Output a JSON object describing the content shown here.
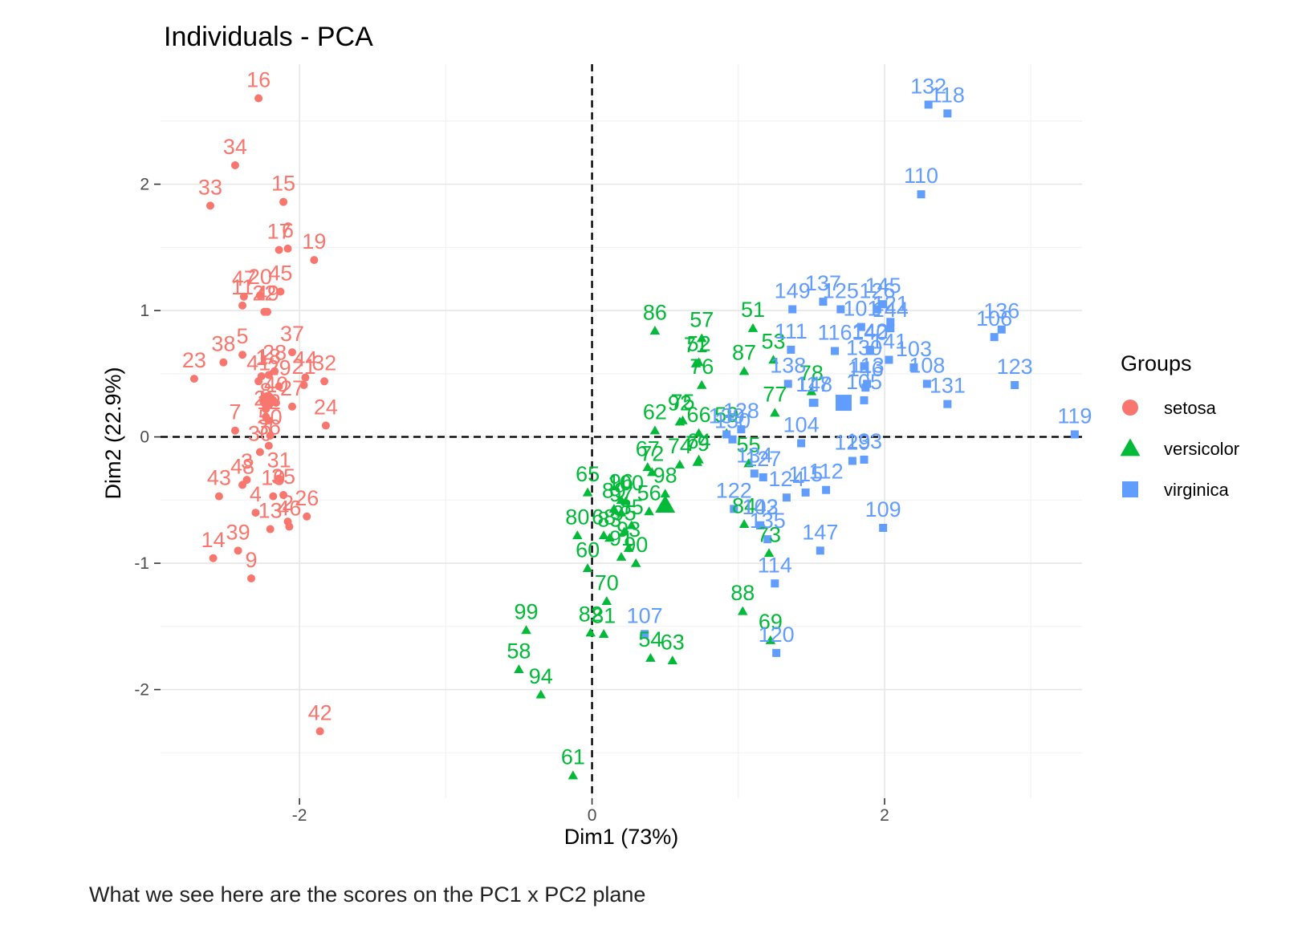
{
  "chart_data": {
    "type": "scatter",
    "title": "Individuals - PCA",
    "xlabel": "Dim1 (73%)",
    "ylabel": "Dim2 (22.9%)",
    "xlim": [
      -2.95,
      3.35
    ],
    "ylim": [
      -2.86,
      2.95
    ],
    "xticks": [
      -2,
      0,
      2
    ],
    "yticks": [
      -2,
      -1,
      0,
      1,
      2
    ],
    "grid": true,
    "reference_lines": {
      "x": 0,
      "y": 0,
      "style": "dashed"
    },
    "legend": {
      "title": "Groups",
      "position": "right"
    },
    "series": [
      {
        "name": "setosa",
        "color": "#F8766D",
        "marker": "circle",
        "points": [
          {
            "id": "1",
            "x": -2.26,
            "y": 0.48
          },
          {
            "id": "2",
            "x": -2.08,
            "y": -0.67
          },
          {
            "id": "3",
            "x": -2.36,
            "y": -0.34
          },
          {
            "id": "4",
            "x": -2.3,
            "y": -0.6
          },
          {
            "id": "5",
            "x": -2.39,
            "y": 0.65
          },
          {
            "id": "6",
            "x": -2.08,
            "y": 1.49
          },
          {
            "id": "7",
            "x": -2.44,
            "y": 0.05
          },
          {
            "id": "8",
            "x": -2.23,
            "y": 0.22
          },
          {
            "id": "9",
            "x": -2.33,
            "y": -1.12
          },
          {
            "id": "10",
            "x": -2.18,
            "y": -0.47
          },
          {
            "id": "11",
            "x": -2.39,
            "y": 1.04
          },
          {
            "id": "12",
            "x": -2.21,
            "y": 0.13
          },
          {
            "id": "13",
            "x": -2.2,
            "y": -0.73
          },
          {
            "id": "14",
            "x": -2.59,
            "y": -0.96
          },
          {
            "id": "15",
            "x": -2.11,
            "y": 1.86
          },
          {
            "id": "16",
            "x": -2.28,
            "y": 2.68
          },
          {
            "id": "17",
            "x": -2.14,
            "y": 1.48
          },
          {
            "id": "18",
            "x": -2.21,
            "y": 0.49
          },
          {
            "id": "19",
            "x": -1.9,
            "y": 1.4
          },
          {
            "id": "20",
            "x": -2.27,
            "y": 1.12
          },
          {
            "id": "21",
            "x": -1.97,
            "y": 0.41
          },
          {
            "id": "22",
            "x": -2.24,
            "y": 0.99
          },
          {
            "id": "23",
            "x": -2.72,
            "y": 0.46
          },
          {
            "id": "24",
            "x": -1.82,
            "y": 0.09
          },
          {
            "id": "25",
            "x": -2.23,
            "y": 0.16
          },
          {
            "id": "26",
            "x": -1.95,
            "y": -0.63
          },
          {
            "id": "27",
            "x": -2.05,
            "y": 0.24
          },
          {
            "id": "28",
            "x": -2.17,
            "y": 0.52
          },
          {
            "id": "29",
            "x": -2.14,
            "y": 0.4
          },
          {
            "id": "30",
            "x": -2.27,
            "y": -0.12
          },
          {
            "id": "31",
            "x": -2.14,
            "y": -0.33
          },
          {
            "id": "32",
            "x": -1.83,
            "y": 0.44
          },
          {
            "id": "33",
            "x": -2.61,
            "y": 1.83
          },
          {
            "id": "34",
            "x": -2.44,
            "y": 2.15
          },
          {
            "id": "35",
            "x": -2.11,
            "y": -0.46
          },
          {
            "id": "36",
            "x": -2.21,
            "y": -0.07
          },
          {
            "id": "37",
            "x": -2.05,
            "y": 0.67
          },
          {
            "id": "38",
            "x": -2.52,
            "y": 0.59
          },
          {
            "id": "39",
            "x": -2.42,
            "y": -0.9
          },
          {
            "id": "40",
            "x": -2.16,
            "y": 0.27
          },
          {
            "id": "41",
            "x": -2.28,
            "y": 0.44
          },
          {
            "id": "42",
            "x": -1.86,
            "y": -2.33
          },
          {
            "id": "43",
            "x": -2.55,
            "y": -0.47
          },
          {
            "id": "44",
            "x": -1.96,
            "y": 0.47
          },
          {
            "id": "45",
            "x": -2.13,
            "y": 1.15
          },
          {
            "id": "46",
            "x": -2.07,
            "y": -0.71
          },
          {
            "id": "47",
            "x": -2.38,
            "y": 1.11
          },
          {
            "id": "48",
            "x": -2.39,
            "y": -0.38
          },
          {
            "id": "49",
            "x": -2.22,
            "y": 0.99
          },
          {
            "id": "50",
            "x": -2.2,
            "y": 0.01
          }
        ]
      },
      {
        "name": "versicolor",
        "color": "#00BA38",
        "marker": "triangle",
        "points": [
          {
            "id": "51",
            "x": 1.1,
            "y": 0.86
          },
          {
            "id": "52",
            "x": 0.73,
            "y": 0.59
          },
          {
            "id": "53",
            "x": 1.24,
            "y": 0.61
          },
          {
            "id": "54",
            "x": 0.4,
            "y": -1.75
          },
          {
            "id": "55",
            "x": 1.07,
            "y": -0.21
          },
          {
            "id": "56",
            "x": 0.39,
            "y": -0.59
          },
          {
            "id": "57",
            "x": 0.75,
            "y": 0.78
          },
          {
            "id": "58",
            "x": -0.5,
            "y": -1.84
          },
          {
            "id": "59",
            "x": 0.92,
            "y": 0.03
          },
          {
            "id": "60",
            "x": -0.03,
            "y": -1.04
          },
          {
            "id": "61",
            "x": -0.13,
            "y": -2.68
          },
          {
            "id": "62",
            "x": 0.43,
            "y": 0.05
          },
          {
            "id": "63",
            "x": 0.55,
            "y": -1.77
          },
          {
            "id": "64",
            "x": 0.73,
            "y": -0.18
          },
          {
            "id": "65",
            "x": -0.03,
            "y": -0.44
          },
          {
            "id": "66",
            "x": 0.73,
            "y": 0.03
          },
          {
            "id": "67",
            "x": 0.38,
            "y": -0.24
          },
          {
            "id": "68",
            "x": 0.08,
            "y": -0.78
          },
          {
            "id": "69",
            "x": 1.22,
            "y": -1.61
          },
          {
            "id": "70",
            "x": 0.1,
            "y": -1.3
          },
          {
            "id": "71",
            "x": 0.71,
            "y": 0.58
          },
          {
            "id": "72",
            "x": 0.41,
            "y": -0.28
          },
          {
            "id": "73",
            "x": 1.21,
            "y": -0.92
          },
          {
            "id": "74",
            "x": 0.6,
            "y": -0.22
          },
          {
            "id": "75",
            "x": 0.62,
            "y": 0.13
          },
          {
            "id": "76",
            "x": 0.75,
            "y": 0.41
          },
          {
            "id": "77",
            "x": 1.25,
            "y": 0.19
          },
          {
            "id": "78",
            "x": 1.5,
            "y": 0.36
          },
          {
            "id": "79",
            "x": 0.72,
            "y": -0.2
          },
          {
            "id": "80",
            "x": -0.1,
            "y": -0.78
          },
          {
            "id": "81",
            "x": 0.08,
            "y": -1.56
          },
          {
            "id": "82",
            "x": -0.01,
            "y": -1.55
          },
          {
            "id": "83",
            "x": 0.12,
            "y": -0.8
          },
          {
            "id": "84",
            "x": 1.04,
            "y": -0.69
          },
          {
            "id": "85",
            "x": 0.27,
            "y": -0.7
          },
          {
            "id": "86",
            "x": 0.43,
            "y": 0.84
          },
          {
            "id": "87",
            "x": 1.04,
            "y": 0.52
          },
          {
            "id": "88",
            "x": 1.03,
            "y": -1.38
          },
          {
            "id": "89",
            "x": 0.15,
            "y": -0.57
          },
          {
            "id": "90",
            "x": 0.3,
            "y": -1.0
          },
          {
            "id": "91",
            "x": 0.2,
            "y": -0.95
          },
          {
            "id": "92",
            "x": 0.6,
            "y": 0.12
          },
          {
            "id": "93",
            "x": 0.25,
            "y": -0.88
          },
          {
            "id": "94",
            "x": -0.35,
            "y": -2.04
          },
          {
            "id": "95",
            "x": 0.22,
            "y": -0.75
          },
          {
            "id": "96",
            "x": 0.2,
            "y": -0.5
          },
          {
            "id": "97",
            "x": 0.2,
            "y": -0.6
          },
          {
            "id": "98",
            "x": 0.5,
            "y": -0.45
          },
          {
            "id": "99",
            "x": -0.45,
            "y": -1.53
          },
          {
            "id": "100",
            "x": 0.23,
            "y": -0.51
          }
        ]
      },
      {
        "name": "virginica",
        "color": "#619CFF",
        "marker": "square",
        "points": [
          {
            "id": "101",
            "x": 1.84,
            "y": 0.87
          },
          {
            "id": "102",
            "x": 1.15,
            "y": -0.7
          },
          {
            "id": "103",
            "x": 2.2,
            "y": 0.55
          },
          {
            "id": "104",
            "x": 1.43,
            "y": -0.05
          },
          {
            "id": "105",
            "x": 1.86,
            "y": 0.29
          },
          {
            "id": "106",
            "x": 2.75,
            "y": 0.79
          },
          {
            "id": "107",
            "x": 0.36,
            "y": -1.56
          },
          {
            "id": "108",
            "x": 2.29,
            "y": 0.42
          },
          {
            "id": "109",
            "x": 1.99,
            "y": -0.72
          },
          {
            "id": "110",
            "x": 2.25,
            "y": 1.92
          },
          {
            "id": "111",
            "x": 1.36,
            "y": 0.69
          },
          {
            "id": "112",
            "x": 1.6,
            "y": -0.42
          },
          {
            "id": "113",
            "x": 1.88,
            "y": 0.42
          },
          {
            "id": "114",
            "x": 1.25,
            "y": -1.16
          },
          {
            "id": "115",
            "x": 1.46,
            "y": -0.44
          },
          {
            "id": "116",
            "x": 1.66,
            "y": 0.68
          },
          {
            "id": "117",
            "x": 1.51,
            "y": 0.27
          },
          {
            "id": "118",
            "x": 2.43,
            "y": 2.56
          },
          {
            "id": "119",
            "x": 3.3,
            "y": 0.02
          },
          {
            "id": "120",
            "x": 1.26,
            "y": -1.71
          },
          {
            "id": "121",
            "x": 2.04,
            "y": 0.91
          },
          {
            "id": "122",
            "x": 0.97,
            "y": -0.57
          },
          {
            "id": "123",
            "x": 2.89,
            "y": 0.41
          },
          {
            "id": "124",
            "x": 1.33,
            "y": -0.48
          },
          {
            "id": "125",
            "x": 1.7,
            "y": 1.01
          },
          {
            "id": "126",
            "x": 1.95,
            "y": 1.01
          },
          {
            "id": "127",
            "x": 1.17,
            "y": -0.32
          },
          {
            "id": "128",
            "x": 1.02,
            "y": 0.06
          },
          {
            "id": "129",
            "x": 1.78,
            "y": -0.19
          },
          {
            "id": "130",
            "x": 1.86,
            "y": 0.56
          },
          {
            "id": "131",
            "x": 2.43,
            "y": 0.26
          },
          {
            "id": "132",
            "x": 2.3,
            "y": 2.63
          },
          {
            "id": "133",
            "x": 1.86,
            "y": -0.18
          },
          {
            "id": "134",
            "x": 1.11,
            "y": -0.29
          },
          {
            "id": "135",
            "x": 1.2,
            "y": -0.81
          },
          {
            "id": "136",
            "x": 2.8,
            "y": 0.85
          },
          {
            "id": "137",
            "x": 1.58,
            "y": 1.07
          },
          {
            "id": "138",
            "x": 1.34,
            "y": 0.42
          },
          {
            "id": "139",
            "x": 0.92,
            "y": 0.02
          },
          {
            "id": "140",
            "x": 1.9,
            "y": 0.68
          },
          {
            "id": "141",
            "x": 2.03,
            "y": 0.61
          },
          {
            "id": "142",
            "x": 1.9,
            "y": 0.69
          },
          {
            "id": "143",
            "x": 1.15,
            "y": -0.7
          },
          {
            "id": "144",
            "x": 2.04,
            "y": 0.86
          },
          {
            "id": "145",
            "x": 1.99,
            "y": 1.05
          },
          {
            "id": "146",
            "x": 1.87,
            "y": 0.39
          },
          {
            "id": "147",
            "x": 1.56,
            "y": -0.9
          },
          {
            "id": "148",
            "x": 1.52,
            "y": 0.27
          },
          {
            "id": "149",
            "x": 1.37,
            "y": 1.01
          },
          {
            "id": "150",
            "x": 0.96,
            "y": -0.02
          }
        ]
      }
    ],
    "group_centers": [
      {
        "name": "setosa",
        "x": -2.22,
        "y": 0.29
      },
      {
        "name": "versicolor",
        "x": 0.5,
        "y": -0.54
      },
      {
        "name": "virginica",
        "x": 1.72,
        "y": 0.27
      }
    ]
  },
  "caption": "What we see here are the scores on the PC1 x PC2 plane"
}
